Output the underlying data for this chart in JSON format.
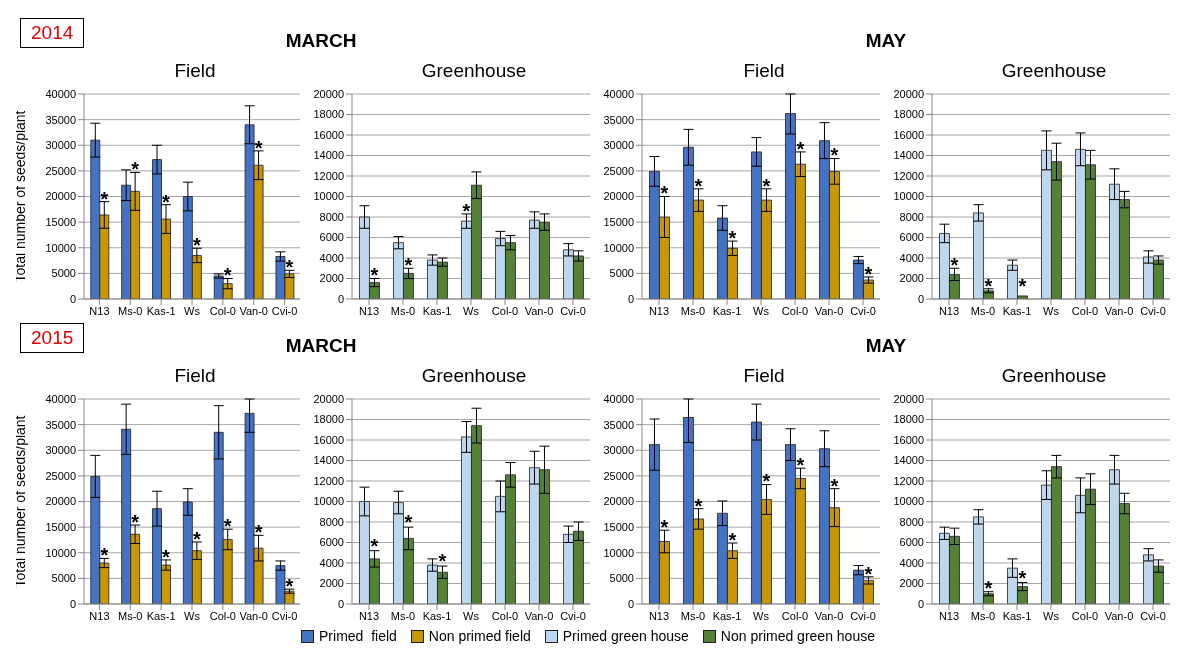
{
  "chart_data": [
    {
      "type": "bar",
      "subtitle": "MARCH",
      "title": "Field",
      "ylabel": "Total number of seeds/plant",
      "annotations": [
        "2014",
        {
          "text": "*",
          "x": "N13",
          "y": 20000
        },
        {
          "text": "*",
          "x": "Ms-0",
          "y": 25800
        },
        {
          "text": "*",
          "x": "Kas-1",
          "y": 19400
        },
        {
          "text": "*",
          "x": "Ws",
          "y": 10900
        },
        {
          "text": "*",
          "x": "Col-0",
          "y": 5000
        },
        {
          "text": "*",
          "x": "Van-0",
          "y": 29900
        },
        {
          "text": "*",
          "x": "Cvi-0",
          "y": 6600
        }
      ],
      "categories": [
        "N13",
        "Ms-0",
        "Kas-1",
        "Ws",
        "Col-0",
        "Van-0",
        "Cvi-0"
      ],
      "series": [
        {
          "name": "Primed  field",
          "color": "#4472c4",
          "values": [
            31000,
            22200,
            27200,
            20000,
            4500,
            34000,
            8300
          ],
          "errors": [
            3300,
            3000,
            2800,
            2800,
            400,
            3700,
            900
          ]
        },
        {
          "name": "Non primed field",
          "color": "#c99700",
          "values": [
            16400,
            21000,
            15600,
            8500,
            3000,
            26100,
            4900
          ],
          "errors": [
            2600,
            3700,
            2800,
            1400,
            1000,
            2800,
            700
          ]
        }
      ],
      "ylim": [
        0,
        40000
      ],
      "yticks": [
        0,
        5000,
        10000,
        15000,
        20000,
        25000,
        30000,
        35000,
        40000
      ],
      "grid": "y",
      "legend": "bottom"
    },
    {
      "type": "bar",
      "title": "Greenhouse",
      "annotations": [
        {
          "text": "*",
          "x": "N13",
          "y": 2500
        },
        {
          "text": "*",
          "x": "Ms-0",
          "y": 3500
        },
        {
          "text": "*",
          "x": "Ws",
          "y": 8800
        }
      ],
      "categories": [
        "N13",
        "Ms-0",
        "Kas-1",
        "Ws",
        "Col-0",
        "Van-0",
        "Cvi-0"
      ],
      "series": [
        {
          "name": "Primed green house",
          "color": "#bdd7ee",
          "values": [
            8000,
            5500,
            3800,
            7600,
            5900,
            7700,
            4800
          ],
          "errors": [
            1100,
            600,
            500,
            700,
            700,
            800,
            600
          ]
        },
        {
          "name": "Non primed green house",
          "color": "#548235",
          "values": [
            1600,
            2500,
            3600,
            11100,
            5500,
            7500,
            4200
          ],
          "errors": [
            400,
            500,
            400,
            1300,
            700,
            800,
            500
          ]
        }
      ],
      "ylim": [
        0,
        20000
      ],
      "yticks": [
        0,
        2000,
        4000,
        6000,
        8000,
        10000,
        12000,
        14000,
        16000,
        18000,
        20000
      ],
      "grid": "y",
      "legend": "bottom"
    },
    {
      "type": "bar",
      "subtitle": "MAY",
      "title": "Field",
      "annotations": [
        {
          "text": "*",
          "x": "N13",
          "y": 21000
        },
        {
          "text": "*",
          "x": "Ms-0",
          "y": 22500
        },
        {
          "text": "*",
          "x": "Kas-1",
          "y": 12300
        },
        {
          "text": "*",
          "x": "Ws",
          "y": 22500
        },
        {
          "text": "*",
          "x": "Col-0",
          "y": 29700
        },
        {
          "text": "*",
          "x": "Van-0",
          "y": 28400
        },
        {
          "text": "*",
          "x": "Cvi-0",
          "y": 5300
        }
      ],
      "categories": [
        "N13",
        "Ms-0",
        "Kas-1",
        "Ws",
        "Col-0",
        "Van-0",
        "Cvi-0"
      ],
      "series": [
        {
          "name": "Primed  field",
          "color": "#4472c4",
          "values": [
            24900,
            29600,
            15800,
            28700,
            36200,
            30900,
            7600
          ],
          "errors": [
            2900,
            3500,
            2400,
            2800,
            [
              32200,
              40000
            ],
            3500,
            700
          ]
        },
        {
          "name": "Non primed field",
          "color": "#c99700",
          "values": [
            16000,
            19300,
            9900,
            19300,
            26300,
            24900,
            3700
          ],
          "errors": [
            4000,
            2200,
            1400,
            2200,
            2400,
            2500,
            600
          ]
        }
      ],
      "ylim": [
        0,
        40000
      ],
      "yticks": [
        0,
        5000,
        10000,
        15000,
        20000,
        25000,
        30000,
        35000,
        40000
      ],
      "grid": "y",
      "legend": "bottom"
    },
    {
      "type": "bar",
      "title": "Greenhouse",
      "annotations": [
        {
          "text": "*",
          "x": "N13",
          "y": 3500
        },
        {
          "text": "*",
          "x": "Ms-0",
          "y": 1500
        },
        {
          "text": "*",
          "x": "Kas-1",
          "y": 1500
        }
      ],
      "categories": [
        "N13",
        "Ms-0",
        "Kas-1",
        "Ws",
        "Col-0",
        "Van-0",
        "Cvi-0"
      ],
      "series": [
        {
          "name": "Primed green house",
          "color": "#bdd7ee",
          "values": [
            6400,
            8400,
            3300,
            14500,
            14600,
            11200,
            4100
          ],
          "errors": [
            900,
            800,
            500,
            1900,
            1600,
            1500,
            600
          ]
        },
        {
          "name": "Non primed green house",
          "color": "#548235",
          "values": [
            2400,
            800,
            300,
            13400,
            13100,
            9700,
            3800
          ],
          "errors": [
            600,
            200,
            null,
            1800,
            1400,
            800,
            400
          ]
        }
      ],
      "ylim": [
        0,
        20000
      ],
      "yticks": [
        0,
        2000,
        4000,
        6000,
        8000,
        10000,
        12000,
        14000,
        16000,
        18000,
        20000
      ],
      "grid": "y",
      "legend": "bottom"
    },
    {
      "type": "bar",
      "subtitle": "MARCH",
      "title": "Field",
      "ylabel": "Total number of seeds/plant",
      "annotations": [
        "2015",
        {
          "text": "*",
          "x": "N13",
          "y": 9900
        },
        {
          "text": "*",
          "x": "Ms-0",
          "y": 16400
        },
        {
          "text": "*",
          "x": "Kas-1",
          "y": 9600
        },
        {
          "text": "*",
          "x": "Ws",
          "y": 13100
        },
        {
          "text": "*",
          "x": "Col-0",
          "y": 15600
        },
        {
          "text": "*",
          "x": "Van-0",
          "y": 14400
        },
        {
          "text": "*",
          "x": "Cvi-0",
          "y": 3900
        }
      ],
      "categories": [
        "N13",
        "Ms-0",
        "Kas-1",
        "Ws",
        "Col-0",
        "Van-0",
        "Cvi-0"
      ],
      "series": [
        {
          "name": "Primed  field",
          "color": "#4472c4",
          "values": [
            24900,
            34100,
            18600,
            19900,
            33500,
            37200,
            7500
          ],
          "errors": [
            4100,
            4900,
            3400,
            2600,
            5200,
            [
              33500,
              40000
            ],
            900
          ]
        },
        {
          "name": "Non primed field",
          "color": "#c99700",
          "values": [
            8000,
            13600,
            7600,
            10400,
            12600,
            10900,
            2500
          ],
          "errors": [
            900,
            1800,
            1000,
            1700,
            2000,
            2500,
            400
          ]
        }
      ],
      "ylim": [
        0,
        40000
      ],
      "yticks": [
        0,
        5000,
        10000,
        15000,
        20000,
        25000,
        30000,
        35000,
        40000
      ],
      "grid": "y",
      "legend": "bottom"
    },
    {
      "type": "bar",
      "title": "Greenhouse",
      "annotations": [
        {
          "text": "*",
          "x": "N13",
          "y": 5900
        },
        {
          "text": "*",
          "x": "Ms-0",
          "y": 8200
        },
        {
          "text": "*",
          "x": "Kas-1",
          "y": 4400
        }
      ],
      "categories": [
        "N13",
        "Ms-0",
        "Kas-1",
        "Ws",
        "Col-0",
        "Van-0",
        "Cvi-0"
      ],
      "series": [
        {
          "name": "Primed green house",
          "color": "#bdd7ee",
          "values": [
            10000,
            9900,
            3800,
            16300,
            10500,
            13300,
            6800
          ],
          "errors": [
            1400,
            1100,
            600,
            1500,
            1500,
            1600,
            800
          ]
        },
        {
          "name": "Non primed green house",
          "color": "#548235",
          "values": [
            4400,
            6400,
            3100,
            17400,
            12600,
            13100,
            7100
          ],
          "errors": [
            800,
            1100,
            600,
            1700,
            1200,
            2300,
            900
          ]
        }
      ],
      "ylim": [
        0,
        20000
      ],
      "yticks": [
        0,
        2000,
        4000,
        6000,
        8000,
        10000,
        12000,
        14000,
        16000,
        18000,
        20000
      ],
      "grid": "y",
      "legend": "bottom"
    },
    {
      "type": "bar",
      "subtitle": "MAY",
      "title": "Field",
      "annotations": [
        {
          "text": "*",
          "x": "N13",
          "y": 15400
        },
        {
          "text": "*",
          "x": "Ms-0",
          "y": 19600
        },
        {
          "text": "*",
          "x": "Kas-1",
          "y": 12900
        },
        {
          "text": "*",
          "x": "Ws",
          "y": 24300
        },
        {
          "text": "*",
          "x": "Col-0",
          "y": 27500
        },
        {
          "text": "*",
          "x": "Van-0",
          "y": 23500
        },
        {
          "text": "*",
          "x": "Cvi-0",
          "y": 6300
        }
      ],
      "categories": [
        "N13",
        "Ms-0",
        "Kas-1",
        "Ws",
        "Col-0",
        "Van-0",
        "Cvi-0"
      ],
      "series": [
        {
          "name": "Primed  field",
          "color": "#4472c4",
          "values": [
            31100,
            36400,
            17700,
            35500,
            31100,
            30300,
            6600
          ],
          "errors": [
            5000,
            [
              31500,
              40000
            ],
            2400,
            3500,
            3100,
            3500,
            900
          ]
        },
        {
          "name": "Non primed field",
          "color": "#c99700",
          "values": [
            12200,
            16600,
            10400,
            20400,
            24500,
            18800,
            4600
          ],
          "errors": [
            2200,
            2000,
            1500,
            2900,
            2000,
            3700,
            700
          ]
        }
      ],
      "ylim": [
        0,
        40000
      ],
      "yticks": [
        0,
        5000,
        10000,
        15000,
        20000,
        25000,
        30000,
        35000,
        40000
      ],
      "grid": "y",
      "legend": "bottom"
    },
    {
      "type": "bar",
      "title": "Greenhouse",
      "annotations": [
        {
          "text": "*",
          "x": "Ms-0",
          "y": 1800
        },
        {
          "text": "*",
          "x": "Kas-1",
          "y": 2700
        }
      ],
      "categories": [
        "N13",
        "Ms-0",
        "Kas-1",
        "Ws",
        "Col-0",
        "Van-0",
        "Cvi-0"
      ],
      "series": [
        {
          "name": "Primed green house",
          "color": "#bdd7ee",
          "values": [
            6900,
            8500,
            3500,
            11600,
            10600,
            13100,
            4800
          ],
          "errors": [
            600,
            700,
            900,
            1400,
            1700,
            1400,
            600
          ]
        },
        {
          "name": "Non primed green house",
          "color": "#548235",
          "values": [
            6600,
            1000,
            1700,
            13400,
            11200,
            9800,
            3700
          ],
          "errors": [
            800,
            200,
            400,
            1100,
            1500,
            1000,
            600
          ]
        }
      ],
      "ylim": [
        0,
        20000
      ],
      "yticks": [
        0,
        2000,
        4000,
        6000,
        8000,
        10000,
        12000,
        14000,
        16000,
        18000,
        20000
      ],
      "grid": "y",
      "legend": "bottom"
    }
  ]
}
